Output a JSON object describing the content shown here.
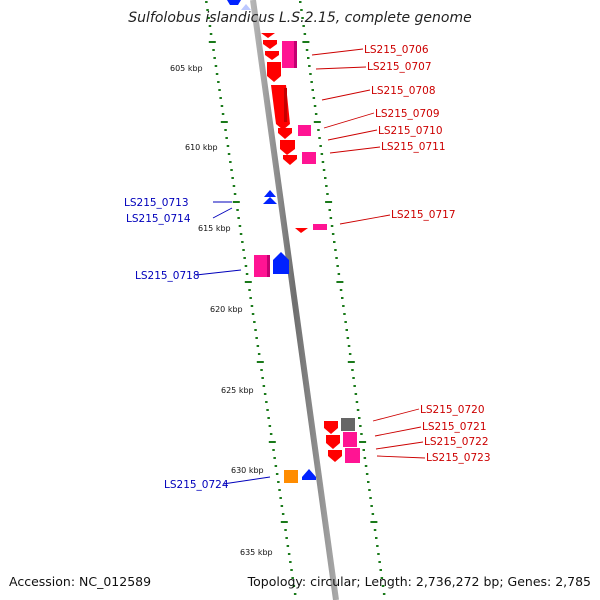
{
  "title": "Sulfolobus islandicus L.S.2.15, complete genome",
  "footer": {
    "accession": "Accession: NC_012589",
    "summary": "Topology: circular; Length: 2,736,272 bp; Genes: 2,785"
  },
  "colors": {
    "backbone": "#8f8f8f",
    "ticks": "#1a7a1a",
    "label_red": "#cc0000",
    "label_blue": "#0000bb",
    "red": "#ff0000",
    "pink": "#ff1493",
    "blue": "#0022ff",
    "gray": "#666666",
    "orange": "#ff8c00",
    "light_blue": "#bcc8ff"
  },
  "scale_labels": [
    "605 kbp",
    "610 kbp",
    "615 kbp",
    "620 kbp",
    "625 kbp",
    "630 kbp",
    "635 kbp"
  ],
  "gene_labels": [
    {
      "text": "LS215_0706",
      "color": "red"
    },
    {
      "text": "LS215_0707",
      "color": "red"
    },
    {
      "text": "LS215_0708",
      "color": "red"
    },
    {
      "text": "LS215_0709",
      "color": "red"
    },
    {
      "text": "LS215_0710",
      "color": "red"
    },
    {
      "text": "LS215_0711",
      "color": "red"
    },
    {
      "text": "LS215_0713",
      "color": "blue"
    },
    {
      "text": "LS215_0714",
      "color": "blue"
    },
    {
      "text": "LS215_0717",
      "color": "red"
    },
    {
      "text": "LS215_0718",
      "color": "blue"
    },
    {
      "text": "LS215_0720",
      "color": "red"
    },
    {
      "text": "LS215_0721",
      "color": "red"
    },
    {
      "text": "LS215_0722",
      "color": "red"
    },
    {
      "text": "LS215_0723",
      "color": "red"
    },
    {
      "text": "LS215_0724",
      "color": "blue"
    }
  ]
}
